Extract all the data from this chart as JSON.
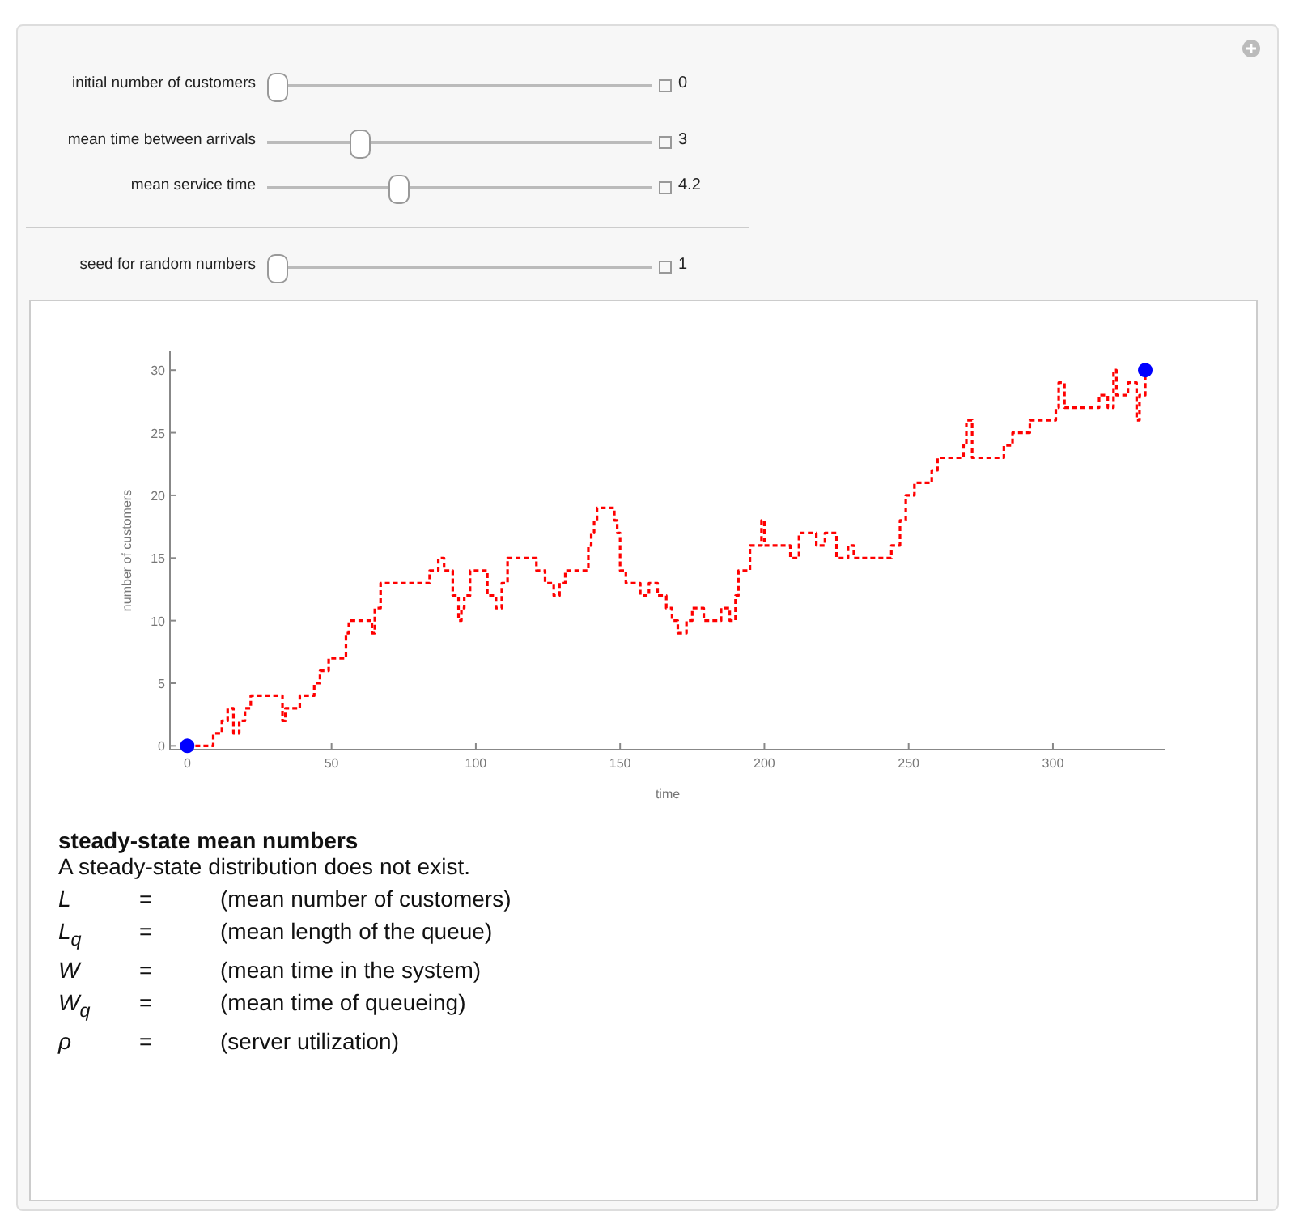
{
  "chart_data": {
    "type": "step",
    "xlabel": "time",
    "ylabel": "number of customers",
    "xlim": [
      -6,
      339
    ],
    "ylim": [
      -0.3,
      31.5
    ],
    "xticks": [
      0,
      50,
      100,
      150,
      200,
      250,
      300
    ],
    "yticks": [
      0,
      5,
      10,
      15,
      20,
      25,
      30
    ],
    "line_style": "dashed",
    "series": [
      {
        "color": "#ff0000",
        "x": [
          0,
          9,
          12,
          14,
          16,
          18,
          20,
          22,
          33,
          34,
          39,
          44,
          46,
          49,
          55,
          56,
          64,
          65,
          67,
          84,
          87,
          89,
          92,
          94,
          95,
          96,
          98,
          104,
          107,
          109,
          111,
          121,
          124,
          127,
          129,
          131,
          139,
          140,
          141,
          142,
          148,
          149,
          150,
          152,
          157,
          160,
          163,
          166,
          168,
          170,
          173,
          175,
          179,
          185,
          188,
          190,
          191,
          195,
          199,
          200,
          209,
          212,
          218,
          221,
          225,
          229,
          231,
          244,
          247,
          249,
          252,
          258,
          260,
          269,
          270,
          272,
          283,
          286,
          292,
          301,
          302,
          304,
          316,
          319,
          321,
          322,
          326,
          329,
          330,
          332
        ],
        "values": [
          0,
          1,
          2,
          3,
          1,
          2,
          3,
          4,
          2,
          3,
          4,
          5,
          6,
          7,
          9,
          10,
          9,
          11,
          13,
          14,
          15,
          14,
          12,
          10,
          11,
          12,
          14,
          12,
          11,
          13,
          15,
          14,
          13,
          12,
          13,
          14,
          16,
          17,
          18,
          19,
          18,
          17,
          14,
          13,
          12,
          13,
          12,
          11,
          10,
          9,
          10,
          11,
          10,
          11,
          10,
          12,
          14,
          16,
          18,
          16,
          15,
          17,
          16,
          17,
          15,
          16,
          15,
          16,
          18,
          20,
          21,
          22,
          23,
          24,
          26,
          23,
          24,
          25,
          26,
          27,
          29,
          27,
          28,
          27,
          30,
          28,
          29,
          26,
          28,
          30
        ]
      },
      {
        "type": "scatter",
        "marker": "circle",
        "color": "#0000ff",
        "x": [
          0,
          332
        ],
        "values": [
          0,
          30
        ]
      }
    ],
    "annotations": [
      "initial number of customers",
      "0",
      "mean time between arrivals",
      "3",
      "mean service time",
      "4.2",
      "seed for random numbers",
      "1",
      "steady-state mean numbers",
      "A steady-state distribution does not exist.",
      "L",
      "=",
      "(mean number of customers)",
      "L$_{q}$",
      "=",
      "(mean length of the queue)",
      "W",
      "=",
      "(mean time in the system)",
      "W$_{q}$",
      "=",
      "(mean time of queueing)",
      "ρ",
      "=",
      "(server utilization)"
    ]
  }
}
